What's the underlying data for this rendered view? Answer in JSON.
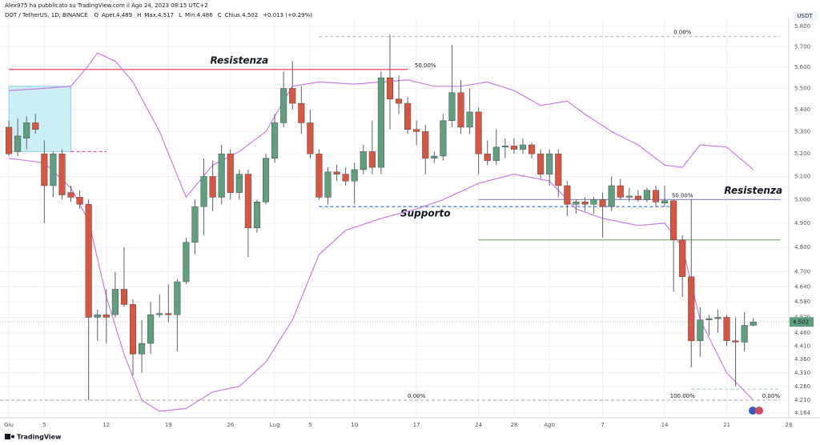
{
  "chart_data": {
    "type": "candlestick",
    "publisher": "Alex975 ha pubblicato su TradingView.com il Ago 24, 2023 08:15 UTC+2",
    "symbol": "DOT / TetherUS, 1D, BINANCE",
    "legend": [
      {
        "key": "O",
        "text": "Aper.4.489"
      },
      {
        "key": "H",
        "text": "Max.4.517"
      },
      {
        "key": "L",
        "text": "Min.4.486"
      },
      {
        "key": "C",
        "text": "Chius.4.502"
      }
    ],
    "change": "+0.013 (+0.29%)",
    "currency": "USDT",
    "brand": "TradingView",
    "log_scale": true,
    "grid": true,
    "up_color": "#5f9f80",
    "down_color": "#d9553f",
    "dates": [
      "2023-06-01",
      "2023-06-02",
      "2023-06-03",
      "2023-06-04",
      "2023-06-05",
      "2023-06-06",
      "2023-06-07",
      "2023-06-08",
      "2023-06-09",
      "2023-06-10",
      "2023-06-11",
      "2023-06-12",
      "2023-06-13",
      "2023-06-14",
      "2023-06-15",
      "2023-06-16",
      "2023-06-17",
      "2023-06-18",
      "2023-06-19",
      "2023-06-20",
      "2023-06-21",
      "2023-06-22",
      "2023-06-23",
      "2023-06-24",
      "2023-06-25",
      "2023-06-26",
      "2023-06-27",
      "2023-06-28",
      "2023-06-29",
      "2023-06-30",
      "2023-07-01",
      "2023-07-02",
      "2023-07-03",
      "2023-07-04",
      "2023-07-05",
      "2023-07-06",
      "2023-07-07",
      "2023-07-08",
      "2023-07-09",
      "2023-07-10",
      "2023-07-11",
      "2023-07-12",
      "2023-07-13",
      "2023-07-14",
      "2023-07-15",
      "2023-07-16",
      "2023-07-17",
      "2023-07-18",
      "2023-07-19",
      "2023-07-20",
      "2023-07-21",
      "2023-07-22",
      "2023-07-23",
      "2023-07-24",
      "2023-07-25",
      "2023-07-26",
      "2023-07-27",
      "2023-07-28",
      "2023-07-29",
      "2023-07-30",
      "2023-07-31",
      "2023-08-01",
      "2023-08-02",
      "2023-08-03",
      "2023-08-04",
      "2023-08-05",
      "2023-08-06",
      "2023-08-07",
      "2023-08-08",
      "2023-08-09",
      "2023-08-10",
      "2023-08-11",
      "2023-08-12",
      "2023-08-13",
      "2023-08-14",
      "2023-08-15",
      "2023-08-16",
      "2023-08-17",
      "2023-08-18",
      "2023-08-19",
      "2023-08-20",
      "2023-08-21",
      "2023-08-22",
      "2023-08-23",
      "2023-08-24"
    ],
    "open": [
      5.32,
      5.21,
      5.27,
      5.34,
      5.2,
      5.06,
      5.2,
      5.03,
      5.01,
      4.98,
      4.52,
      4.53,
      4.53,
      4.63,
      4.57,
      4.38,
      4.42,
      4.53,
      4.535,
      4.53,
      4.66,
      4.82,
      4.97,
      5.1,
      5.01,
      5.2,
      5.03,
      5.11,
      4.88,
      4.99,
      5.18,
      5.34,
      5.5,
      5.43,
      5.34,
      5.2,
      5.01,
      5.12,
      5.11,
      5.08,
      5.13,
      5.21,
      5.14,
      5.55,
      5.45,
      5.43,
      5.31,
      5.3,
      5.18,
      5.19,
      5.35,
      5.48,
      5.32,
      5.39,
      5.2,
      5.17,
      5.23,
      5.235,
      5.22,
      5.24,
      5.2,
      5.11,
      5.2,
      5.06,
      4.98,
      4.99,
      4.98,
      5.0,
      4.97,
      5.06,
      5.01,
      5.015,
      5.0,
      5.04,
      4.985,
      4.995,
      4.83,
      4.68,
      4.43,
      4.51,
      4.515,
      4.52,
      4.43,
      4.425,
      4.489
    ],
    "high": [
      5.35,
      5.36,
      5.37,
      5.38,
      5.26,
      5.21,
      5.22,
      5.06,
      5.04,
      5.0,
      4.55,
      4.63,
      4.7,
      4.8,
      4.59,
      4.51,
      4.58,
      4.61,
      4.65,
      4.67,
      4.84,
      5.0,
      5.18,
      5.17,
      5.24,
      5.22,
      5.13,
      5.13,
      5.0,
      5.2,
      5.38,
      5.58,
      5.63,
      5.51,
      5.4,
      5.22,
      5.14,
      5.15,
      5.14,
      5.16,
      5.24,
      5.35,
      5.58,
      5.76,
      5.56,
      5.46,
      5.35,
      5.33,
      5.21,
      5.38,
      5.71,
      5.54,
      5.5,
      5.41,
      5.26,
      5.31,
      5.27,
      5.27,
      5.27,
      5.25,
      5.22,
      5.22,
      5.22,
      5.08,
      5.0,
      5.01,
      5.01,
      5.03,
      5.1,
      5.09,
      5.05,
      5.04,
      5.05,
      5.06,
      5.06,
      5.0,
      4.85,
      5.0,
      4.56,
      4.53,
      4.55,
      4.53,
      4.52,
      4.54,
      4.517
    ],
    "low": [
      5.19,
      5.19,
      5.22,
      5.29,
      4.9,
      5.01,
      5.0,
      4.99,
      4.96,
      4.21,
      4.43,
      4.42,
      4.52,
      4.56,
      4.3,
      4.31,
      4.38,
      4.52,
      4.5,
      4.39,
      4.65,
      4.77,
      4.85,
      4.95,
      4.98,
      5.0,
      5.0,
      4.76,
      4.86,
      4.98,
      5.16,
      5.32,
      5.4,
      5.29,
      5.18,
      5.0,
      4.98,
      5.08,
      5.06,
      4.98,
      5.11,
      5.11,
      5.11,
      5.31,
      5.38,
      5.29,
      5.24,
      5.11,
      5.16,
      5.17,
      5.32,
      5.29,
      5.29,
      5.11,
      5.15,
      5.15,
      5.18,
      5.2,
      5.2,
      5.18,
      5.09,
      5.06,
      5.01,
      4.93,
      4.94,
      4.95,
      4.94,
      4.84,
      4.95,
      5.0,
      4.99,
      4.99,
      4.99,
      4.97,
      4.97,
      4.62,
      4.6,
      4.33,
      4.37,
      4.45,
      4.46,
      4.41,
      4.26,
      4.39,
      4.486
    ],
    "close": [
      5.2,
      5.28,
      5.34,
      5.31,
      5.06,
      5.2,
      5.02,
      5.01,
      4.98,
      4.52,
      4.53,
      4.52,
      4.63,
      4.57,
      4.38,
      4.42,
      4.53,
      4.535,
      4.53,
      4.66,
      4.82,
      4.97,
      5.1,
      5.01,
      5.2,
      5.03,
      5.11,
      4.88,
      4.99,
      5.18,
      5.34,
      5.5,
      5.43,
      5.34,
      5.2,
      5.01,
      5.12,
      5.11,
      5.08,
      5.13,
      5.21,
      5.14,
      5.55,
      5.45,
      5.43,
      5.31,
      5.3,
      5.18,
      5.19,
      5.35,
      5.48,
      5.32,
      5.39,
      5.2,
      5.17,
      5.23,
      5.235,
      5.22,
      5.24,
      5.2,
      5.11,
      5.2,
      5.06,
      4.98,
      4.99,
      4.98,
      5.0,
      4.97,
      5.06,
      5.01,
      5.015,
      5.0,
      5.04,
      4.99,
      4.995,
      4.83,
      4.68,
      4.43,
      4.51,
      4.515,
      4.52,
      4.43,
      4.425,
      4.489,
      4.502
    ],
    "bands": [
      {
        "color": "#c77fe0",
        "dates": [
          "2023-06-01",
          "2023-06-05",
          "2023-06-08",
          "2023-06-10",
          "2023-06-11",
          "2023-06-13",
          "2023-06-15",
          "2023-06-18",
          "2023-06-21",
          "2023-06-24",
          "2023-06-27",
          "2023-06-30",
          "2023-07-03",
          "2023-07-06",
          "2023-07-10",
          "2023-07-13",
          "2023-07-16",
          "2023-07-19",
          "2023-07-22",
          "2023-07-25",
          "2023-07-28",
          "2023-07-31",
          "2023-08-03",
          "2023-08-05",
          "2023-08-08",
          "2023-08-11",
          "2023-08-14",
          "2023-08-16",
          "2023-08-18",
          "2023-08-21",
          "2023-08-24"
        ],
        "values": [
          5.49,
          5.5,
          5.51,
          5.61,
          5.67,
          5.63,
          5.53,
          5.3,
          5.01,
          5.15,
          5.21,
          5.3,
          5.51,
          5.53,
          5.52,
          5.53,
          5.54,
          5.51,
          5.51,
          5.53,
          5.49,
          5.42,
          5.44,
          5.38,
          5.3,
          5.24,
          5.15,
          5.14,
          5.24,
          5.23,
          5.13
        ]
      },
      {
        "color": "#c77fe0",
        "dates": [
          "2023-06-01",
          "2023-06-05",
          "2023-06-08",
          "2023-06-10",
          "2023-06-12",
          "2023-06-14",
          "2023-06-16",
          "2023-06-18",
          "2023-06-21",
          "2023-06-24",
          "2023-06-27",
          "2023-06-30",
          "2023-07-03",
          "2023-07-06",
          "2023-07-09",
          "2023-07-13",
          "2023-07-17",
          "2023-07-20",
          "2023-07-24",
          "2023-07-28",
          "2023-08-01",
          "2023-08-04",
          "2023-08-07",
          "2023-08-11",
          "2023-08-14",
          "2023-08-16",
          "2023-08-18",
          "2023-08-21",
          "2023-08-24"
        ],
        "values": [
          5.18,
          5.16,
          5.05,
          4.91,
          4.6,
          4.38,
          4.21,
          4.17,
          4.18,
          4.24,
          4.26,
          4.35,
          4.51,
          4.77,
          4.87,
          4.92,
          4.96,
          5.0,
          5.07,
          5.11,
          5.08,
          4.96,
          4.92,
          4.89,
          4.9,
          4.8,
          4.51,
          4.31,
          4.21
        ]
      }
    ],
    "box": {
      "top": 5.51,
      "bottom": 5.21,
      "from": "2023-06-01",
      "to": "2023-06-08",
      "color": "#bfeaf3"
    },
    "lines": [
      {
        "price": 5.59,
        "from": "2023-06-01",
        "to": "2023-07-16",
        "color": "#e0425a",
        "dash": false,
        "labels": [
          {
            "text": "50.00%",
            "at": "2023-07-18"
          }
        ]
      },
      {
        "price": 5.21,
        "from": "2023-06-08",
        "to": "2023-06-12",
        "color": "#e056a0",
        "dash": true,
        "labels": []
      },
      {
        "price": 4.97,
        "from": "2023-07-06",
        "to": "2023-08-15",
        "color": "#3b78e7",
        "dash": true,
        "labels": []
      },
      {
        "price": 5.0,
        "from": "2023-07-24",
        "to": "2023-08-27",
        "color": "#8f8fd8",
        "dash": false,
        "labels": [
          {
            "text": "50.00%",
            "at": "2023-08-16"
          }
        ]
      },
      {
        "price": 4.83,
        "from": "2023-07-24",
        "to": "2023-08-27",
        "color": "#7fb27f",
        "dash": false,
        "labels": []
      },
      {
        "price": 5.75,
        "from": "2023-07-06",
        "to": "2023-08-27",
        "color": "#b9c6c9",
        "dash": true,
        "labels": [
          {
            "text": "0.00%",
            "at": "2023-08-16"
          }
        ]
      },
      {
        "price": 4.21,
        "from": "2023-05-31",
        "to": "2023-08-27",
        "color": "#b9b9b9",
        "dash": true,
        "labels": [
          {
            "text": "0.00%",
            "at": "2023-07-17"
          },
          {
            "text": "100.00%",
            "at": "2023-08-16"
          },
          {
            "text": "0.00%",
            "at": "2023-08-26"
          }
        ]
      },
      {
        "price": 4.25,
        "from": "2023-08-17",
        "to": "2023-08-27",
        "color": "#b7d3c8",
        "dash": true,
        "labels": []
      }
    ],
    "notes": [
      {
        "text": "Resistenza",
        "price": 5.59,
        "at": "2023-06-27",
        "color": "#e0425a",
        "side": "above"
      },
      {
        "text": "Supporto",
        "price": 4.97,
        "at": "2023-07-18",
        "color": "#3b78e7",
        "side": "below"
      },
      {
        "text": "Resistenza",
        "price": 5.0,
        "at": "2023-08-24",
        "color": "#e0425a",
        "side": "above"
      }
    ],
    "xlim": [
      "2023-05-31",
      "2023-08-28"
    ],
    "xticks": [
      {
        "value": "2023-06-01",
        "label": "Giu"
      },
      {
        "value": "2023-06-05",
        "label": "5"
      },
      {
        "value": "2023-06-12",
        "label": "12"
      },
      {
        "value": "2023-06-19",
        "label": "19"
      },
      {
        "value": "2023-06-26",
        "label": "26"
      },
      {
        "value": "2023-07-01",
        "label": "Lug"
      },
      {
        "value": "2023-07-05",
        "label": "5"
      },
      {
        "value": "2023-07-10",
        "label": "10"
      },
      {
        "value": "2023-07-17",
        "label": "17"
      },
      {
        "value": "2023-07-24",
        "label": "24"
      },
      {
        "value": "2023-07-28",
        "label": "28"
      },
      {
        "value": "2023-08-01",
        "label": "Ago"
      },
      {
        "value": "2023-08-07",
        "label": "7"
      },
      {
        "value": "2023-08-14",
        "label": "14"
      },
      {
        "value": "2023-08-21",
        "label": "21"
      },
      {
        "value": "2023-08-28",
        "label": "28"
      }
    ],
    "ylim": [
      4.147,
      5.844
    ],
    "yticks": [
      {
        "value": 5.8,
        "label": "5.800"
      },
      {
        "value": 5.7,
        "label": "5.700"
      },
      {
        "value": 5.6,
        "label": "5.600"
      },
      {
        "value": 5.5,
        "label": "5.500"
      },
      {
        "value": 5.4,
        "label": "5.400"
      },
      {
        "value": 5.3,
        "label": "5.300"
      },
      {
        "value": 5.2,
        "label": "5.200"
      },
      {
        "value": 5.1,
        "label": "5.100"
      },
      {
        "value": 5.0,
        "label": "5.000"
      },
      {
        "value": 4.9,
        "label": "4.900"
      },
      {
        "value": 4.8,
        "label": "4.800"
      },
      {
        "value": 4.7,
        "label": "4.700"
      },
      {
        "value": 4.64,
        "label": "4.640"
      },
      {
        "value": 4.58,
        "label": "4.580"
      },
      {
        "value": 4.52,
        "label": "4.520"
      },
      {
        "value": 4.46,
        "label": "4.460"
      },
      {
        "value": 4.41,
        "label": "4.410"
      },
      {
        "value": 4.36,
        "label": "4.360"
      },
      {
        "value": 4.31,
        "label": "4.310"
      },
      {
        "value": 4.26,
        "label": "4.260"
      },
      {
        "value": 4.21,
        "label": "4.210"
      },
      4.164
    ]
  }
}
